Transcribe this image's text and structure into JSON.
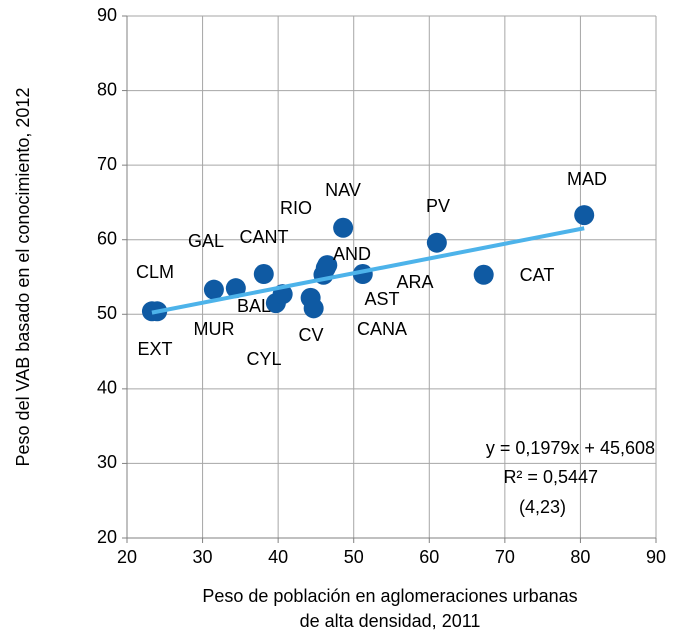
{
  "chart_data": {
    "type": "scatter",
    "xlabel": [
      "Peso de población en aglomeraciones urbanas",
      "de alta densidad, 2011"
    ],
    "ylabel": "Peso del VAB basado en el conocimiento, 2012",
    "x": [
      80.5,
      67.2,
      61.0,
      48.6,
      46.5,
      46.0,
      51.2,
      46.3,
      44.3,
      44.7,
      39.7,
      40.6,
      38.1,
      31.5,
      34.4,
      24.0,
      23.3
    ],
    "series": [
      {
        "color": "#0f5aa3",
        "values": [
          63.3,
          55.3,
          59.6,
          61.6,
          56.6,
          55.3,
          55.4,
          56.2,
          52.2,
          50.8,
          51.5,
          52.7,
          55.4,
          53.3,
          53.5,
          50.4,
          50.4
        ],
        "labels": [
          "MAD",
          "CAT",
          "PV",
          "NAV",
          "RIO",
          "AND",
          "ARA",
          "AST",
          "CANA",
          "CV",
          "CYL",
          "BAL",
          "CANT",
          "GAL",
          "MUR",
          "CLM",
          "EXT"
        ]
      }
    ],
    "trendline": {
      "color": "#4db3ea",
      "x": [
        23.3,
        80.5
      ],
      "values": [
        50.22,
        61.54
      ]
    },
    "annotations": [
      "y = 0,1979x + 45,608",
      "R² = 0,5447",
      "(4,23)"
    ],
    "xlim": [
      20,
      90
    ],
    "xticks": [
      20,
      30,
      40,
      50,
      60,
      70,
      80,
      90
    ],
    "ylim": [
      20,
      90
    ],
    "yticks": [
      20,
      30,
      40,
      50,
      60,
      70,
      80,
      90
    ],
    "grid": true
  }
}
